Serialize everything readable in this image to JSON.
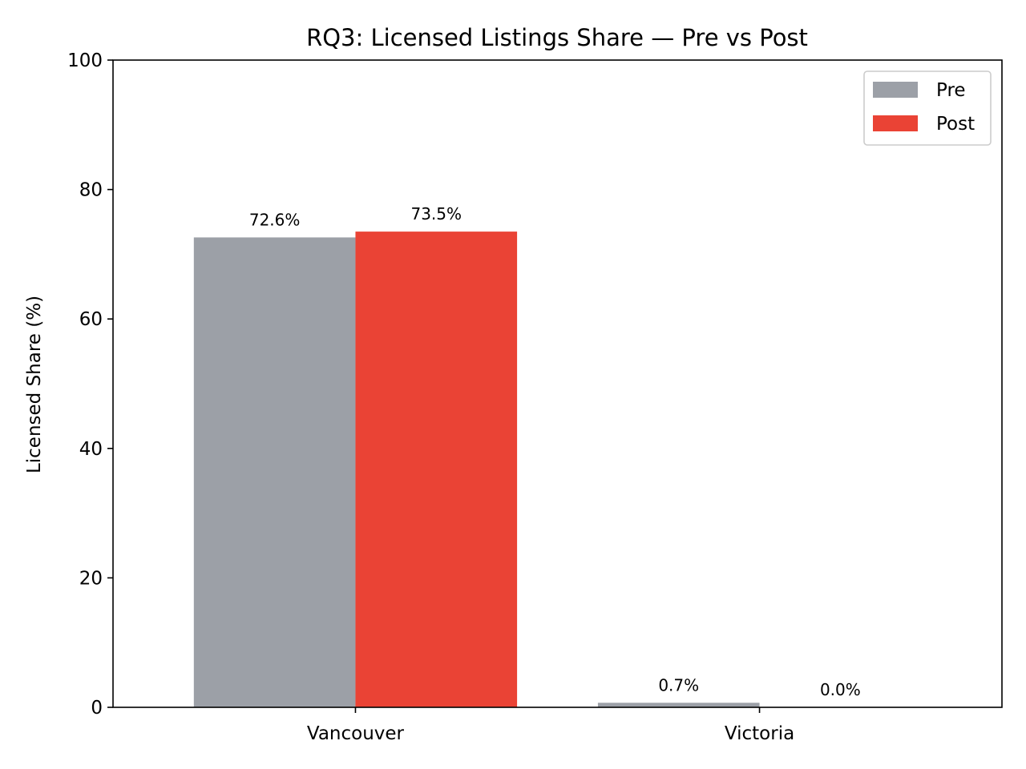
{
  "chart_data": {
    "type": "bar",
    "title": "RQ3: Licensed Listings Share — Pre vs Post",
    "xlabel": "",
    "ylabel": "Licensed Share (%)",
    "categories": [
      "Vancouver",
      "Victoria"
    ],
    "series": [
      {
        "name": "Pre",
        "values": [
          72.6,
          0.7
        ],
        "labels": [
          "72.6%",
          "0.7%"
        ],
        "color": "#9ca0a7"
      },
      {
        "name": "Post",
        "values": [
          73.5,
          0.0
        ],
        "labels": [
          "73.5%",
          "0.0%"
        ],
        "color": "#ea4335"
      }
    ],
    "ylim": [
      0,
      100
    ],
    "yticks": [
      0,
      20,
      40,
      60,
      80,
      100
    ],
    "ytick_labels": [
      "0",
      "20",
      "40",
      "60",
      "80",
      "100"
    ],
    "grid": false,
    "legend_position": "top-right"
  }
}
